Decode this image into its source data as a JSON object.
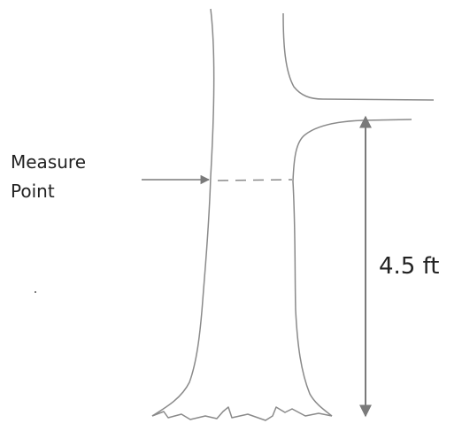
{
  "labels": {
    "measure_point": [
      "Measure",
      "Point"
    ],
    "height": "4.5 ft"
  }
}
